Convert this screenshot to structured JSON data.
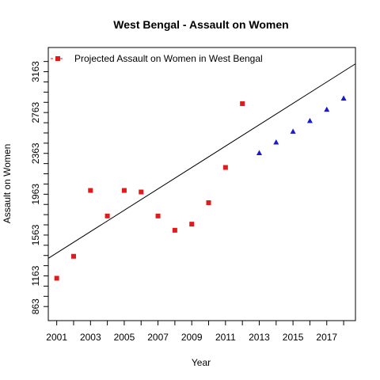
{
  "chart_data": {
    "type": "scatter",
    "title": "West Bengal  -  Assault on Women",
    "xlabel": "Year",
    "ylabel": "Assault on Women",
    "xlim": [
      2000.5,
      2018.7
    ],
    "ylim": [
      725,
      3400
    ],
    "x_ticks": [
      2001,
      2003,
      2005,
      2007,
      2009,
      2011,
      2013,
      2015,
      2017
    ],
    "x_ticks_minor": [
      2002,
      2004,
      2006,
      2008,
      2010,
      2012,
      2014,
      2016,
      2018
    ],
    "y_ticks": [
      863,
      1163,
      1563,
      1963,
      2363,
      2763,
      3163
    ],
    "y_ticks_minor": [
      963,
      1063,
      1263,
      1363,
      1463,
      1663,
      1763,
      1863,
      2063,
      2163,
      2263,
      2463,
      2563,
      2663,
      2863,
      2963,
      3063,
      3263
    ],
    "legend": {
      "label": "Projected  Assault on Women  in  West Bengal",
      "position": "top-left"
    },
    "series": [
      {
        "marker": "square",
        "color": "#e31a1c",
        "points": [
          [
            2001,
            1140
          ],
          [
            2002,
            1355
          ],
          [
            2003,
            2000
          ],
          [
            2004,
            1750
          ],
          [
            2005,
            2000
          ],
          [
            2006,
            1985
          ],
          [
            2007,
            1750
          ],
          [
            2008,
            1610
          ],
          [
            2009,
            1670
          ],
          [
            2010,
            1880
          ],
          [
            2011,
            2225
          ],
          [
            2012,
            2850
          ]
        ]
      },
      {
        "marker": "triangle",
        "color": "#1a1acd",
        "points": [
          [
            2013,
            2365
          ],
          [
            2014,
            2470
          ],
          [
            2015,
            2575
          ],
          [
            2016,
            2680
          ],
          [
            2017,
            2790
          ],
          [
            2018,
            2900
          ]
        ]
      }
    ],
    "trend_line": {
      "color": "#000000",
      "points": [
        [
          2000.5,
          1335
        ],
        [
          2018.7,
          3240
        ]
      ]
    }
  }
}
